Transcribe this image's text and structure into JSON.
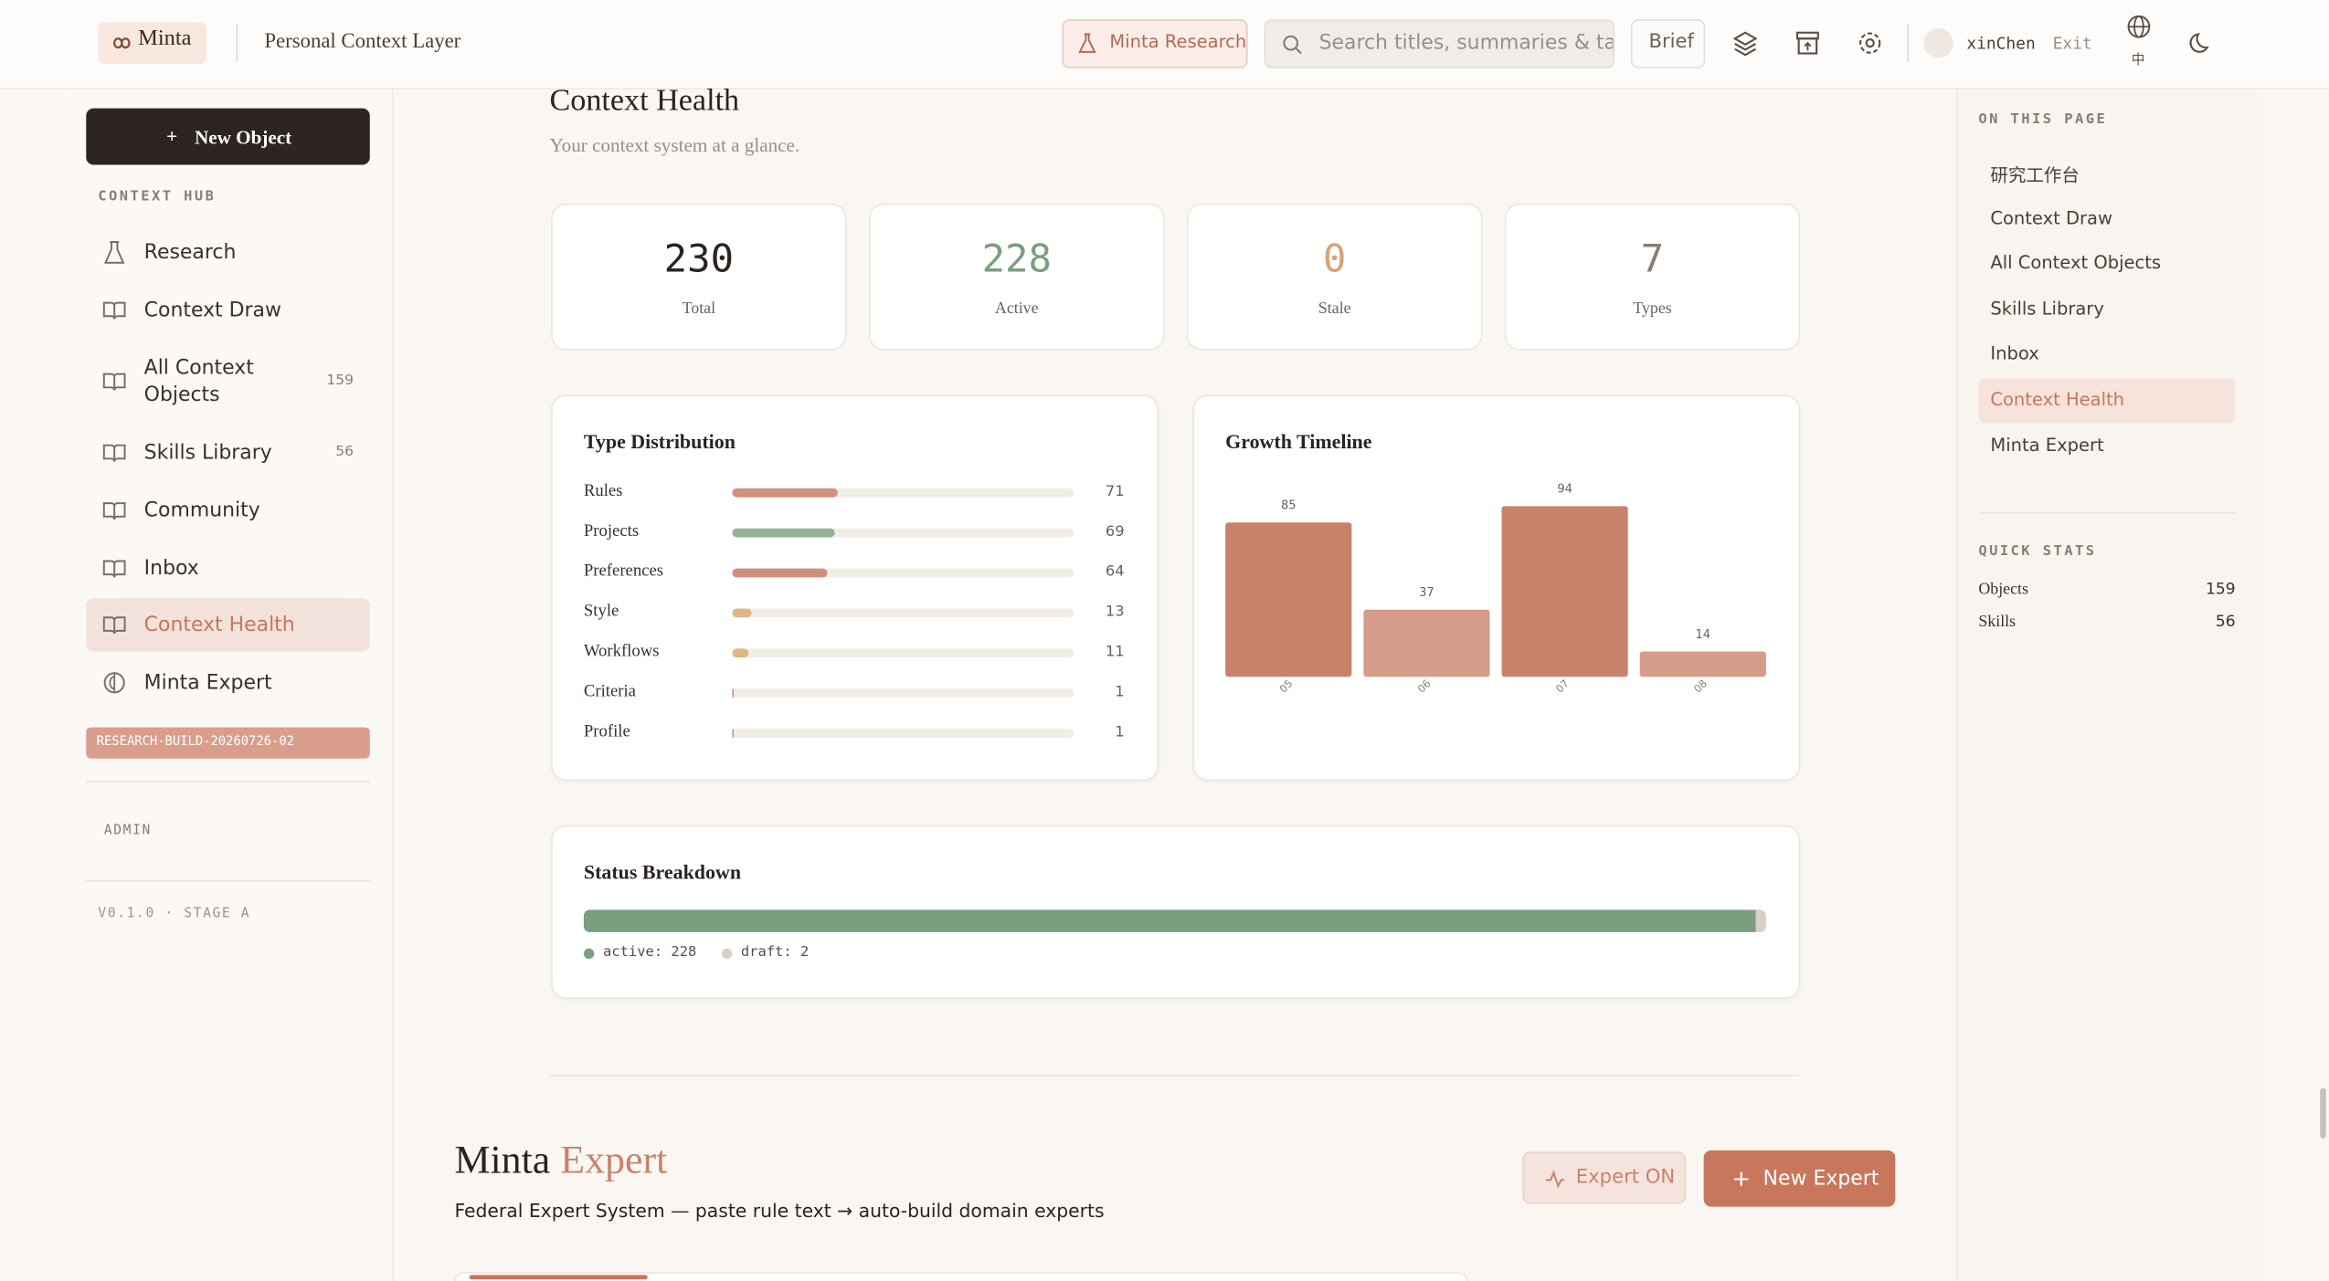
{
  "header": {
    "brand": "Minta",
    "subtitle": "Personal Context Layer",
    "research_button": "Minta Research",
    "search_placeholder": "Search titles, summaries & tags",
    "brief": "Brief",
    "user": "xinChen",
    "exit": "Exit",
    "language": "中"
  },
  "sidebar": {
    "new_object": "New Object",
    "section": "CONTEXT HUB",
    "items": [
      {
        "label": "Research"
      },
      {
        "label": "Context Draw"
      },
      {
        "label": "All Context Objects",
        "count": 159
      },
      {
        "label": "Skills Library",
        "count": 56
      },
      {
        "label": "Community"
      },
      {
        "label": "Inbox"
      },
      {
        "label": "Context Health",
        "active": true
      },
      {
        "label": "Minta Expert"
      }
    ],
    "build_tag": "RESEARCH-BUILD-20260726-02",
    "admin": "ADMIN",
    "version": "V0.1.0 · STAGE A"
  },
  "main": {
    "title": "Context Health",
    "subtitle": "Your context system at a glance.",
    "stats": [
      {
        "value": 230,
        "label": "Total",
        "color": "#2b2320"
      },
      {
        "value": 228,
        "label": "Active",
        "color": "#7a9e7e"
      },
      {
        "value": 0,
        "label": "Stale",
        "color": "#d9a273"
      },
      {
        "value": 7,
        "label": "Types",
        "color": "#8a7c74"
      }
    ],
    "type_distribution": {
      "title": "Type Distribution",
      "rows": [
        {
          "label": "Rules",
          "value": 71,
          "color": "#cf8f7a"
        },
        {
          "label": "Projects",
          "value": 69,
          "color": "#8fb393"
        },
        {
          "label": "Preferences",
          "value": 64,
          "color": "#cf8f7a"
        },
        {
          "label": "Style",
          "value": 13,
          "color": "#e0b687"
        },
        {
          "label": "Workflows",
          "value": 11,
          "color": "#e0b687"
        },
        {
          "label": "Criteria",
          "value": 1,
          "color": "#cf8f7a"
        },
        {
          "label": "Profile",
          "value": 1,
          "color": "#cf8f7a"
        }
      ]
    },
    "growth_timeline": {
      "type": "bar",
      "title": "Growth Timeline",
      "categories": [
        "05",
        "06",
        "07",
        "08"
      ],
      "values": [
        85,
        37,
        94,
        14
      ],
      "colors": [
        "#c8826c",
        "#d49c89",
        "#c8826c",
        "#d49c89"
      ]
    },
    "status_breakdown": {
      "title": "Status Breakdown",
      "segments": [
        {
          "name": "active",
          "value": 228,
          "legend": "active: 228",
          "color": "#7b9e7f"
        },
        {
          "name": "draft",
          "value": 2,
          "legend": "draft: 2",
          "color": "#d8cfc8"
        }
      ]
    },
    "expert": {
      "title_main": "Minta",
      "title_accent": "Expert",
      "description": "Federal Expert System — paste rule text → auto-build domain experts",
      "expert_on": "Expert ON",
      "new_expert": "New Expert"
    }
  },
  "toc": {
    "title": "ON THIS PAGE",
    "items": [
      {
        "label": "研究工作台"
      },
      {
        "label": "Context Draw"
      },
      {
        "label": "All Context Objects"
      },
      {
        "label": "Skills Library"
      },
      {
        "label": "Inbox"
      },
      {
        "label": "Context Health",
        "active": true
      },
      {
        "label": "Minta Expert"
      }
    ],
    "quick_stats_title": "QUICK STATS",
    "quick_stats": [
      {
        "label": "Objects",
        "value": 159
      },
      {
        "label": "Skills",
        "value": 56
      }
    ]
  }
}
